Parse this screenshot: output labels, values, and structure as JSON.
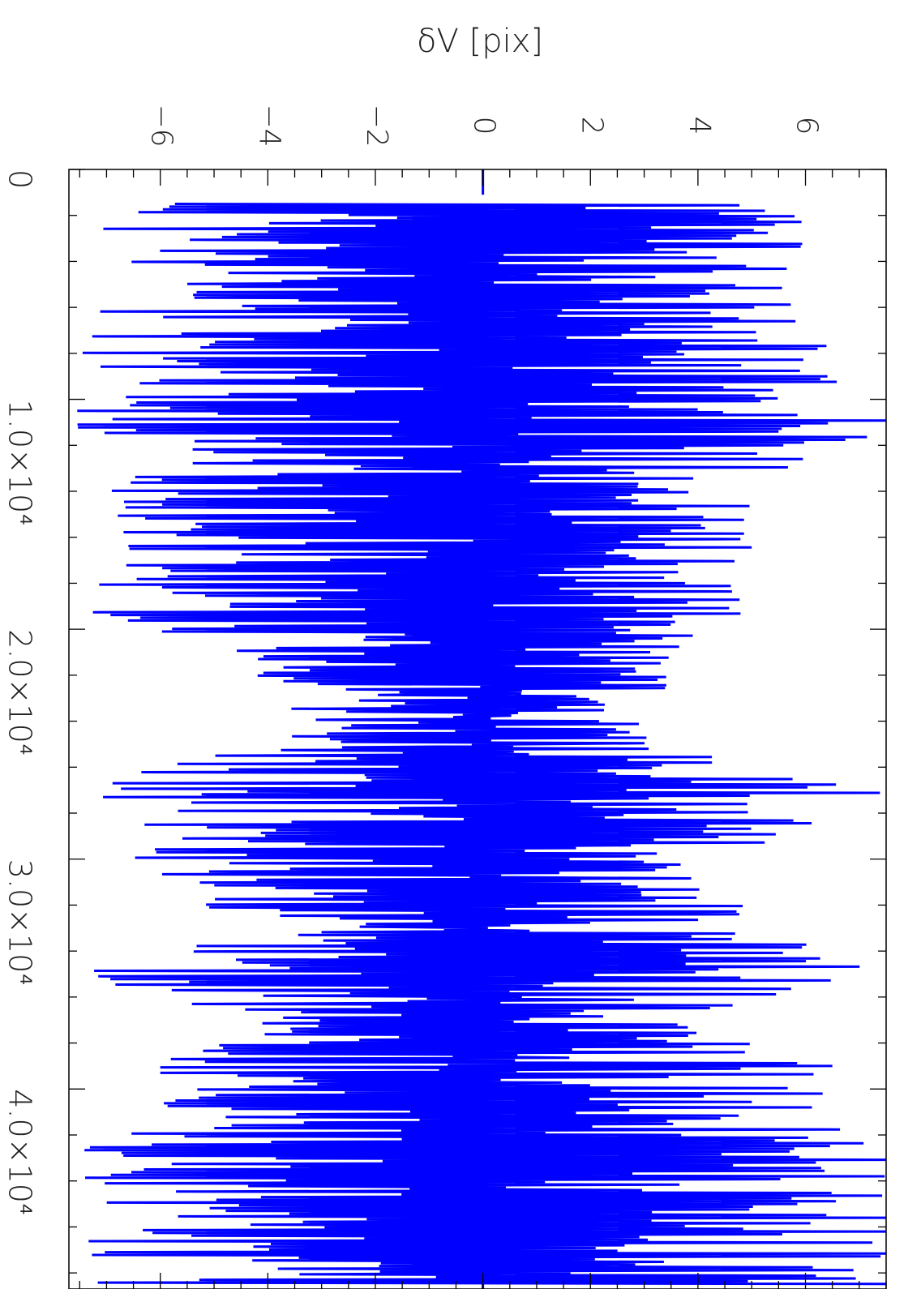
{
  "chart_data": {
    "type": "line",
    "title": "",
    "ylabel": "δV [pix]",
    "xlabel": "",
    "orientation": "rotated-90",
    "x_range": [
      0,
      48700
    ],
    "y_range": [
      -7.7,
      7.5
    ],
    "y_ticks": [
      {
        "value": -6,
        "label": "−6"
      },
      {
        "value": -4,
        "label": "−4"
      },
      {
        "value": -2,
        "label": "−2"
      },
      {
        "value": 0,
        "label": "0"
      },
      {
        "value": 2,
        "label": "2"
      },
      {
        "value": 4,
        "label": "4"
      },
      {
        "value": 6,
        "label": "6"
      }
    ],
    "x_ticks": [
      {
        "value": 0,
        "label": "0"
      },
      {
        "value": 10000,
        "label": "1.0×10⁴"
      },
      {
        "value": 20000,
        "label": "2.0×10⁴"
      },
      {
        "value": 30000,
        "label": "3.0×10⁴"
      },
      {
        "value": 40000,
        "label": "4.0×10⁴"
      }
    ],
    "series_color": "#0000ff",
    "series": [
      {
        "note_envelope": "x in data units; y values are the approximate spread (min/max) of δV",
        "envelope": [
          {
            "x": 1500,
            "lo": -7.7,
            "hi": 6.6
          },
          {
            "x": 3000,
            "lo": -7.0,
            "hi": 6.0
          },
          {
            "x": 5000,
            "lo": -7.0,
            "hi": 5.5
          },
          {
            "x": 7000,
            "lo": -7.2,
            "hi": 6.3
          },
          {
            "x": 9000,
            "lo": -7.7,
            "hi": 7.5
          },
          {
            "x": 11000,
            "lo": -7.7,
            "hi": 7.5
          },
          {
            "x": 13000,
            "lo": -7.0,
            "hi": 6.5
          },
          {
            "x": 15000,
            "lo": -6.8,
            "hi": 5.0
          },
          {
            "x": 17000,
            "lo": -6.5,
            "hi": 5.0
          },
          {
            "x": 19000,
            "lo": -7.7,
            "hi": 5.0
          },
          {
            "x": 21000,
            "lo": -4.7,
            "hi": 3.7
          },
          {
            "x": 23000,
            "lo": -3.7,
            "hi": 3.3
          },
          {
            "x": 25000,
            "lo": -4.5,
            "hi": 3.0
          },
          {
            "x": 27000,
            "lo": -7.7,
            "hi": 7.5
          },
          {
            "x": 29000,
            "lo": -6.0,
            "hi": 5.6
          },
          {
            "x": 31000,
            "lo": -7.0,
            "hi": 4.0
          },
          {
            "x": 33000,
            "lo": -4.0,
            "hi": 5.6
          },
          {
            "x": 35000,
            "lo": -7.7,
            "hi": 7.5
          },
          {
            "x": 37000,
            "lo": -4.7,
            "hi": 3.3
          },
          {
            "x": 39000,
            "lo": -6.0,
            "hi": 6.5
          },
          {
            "x": 41000,
            "lo": -6.0,
            "hi": 6.2
          },
          {
            "x": 43000,
            "lo": -7.7,
            "hi": 7.5
          },
          {
            "x": 45000,
            "lo": -7.0,
            "hi": 7.5
          },
          {
            "x": 47000,
            "lo": -7.7,
            "hi": 7.5
          }
        ]
      }
    ],
    "zero_line": 0,
    "grid": false
  }
}
